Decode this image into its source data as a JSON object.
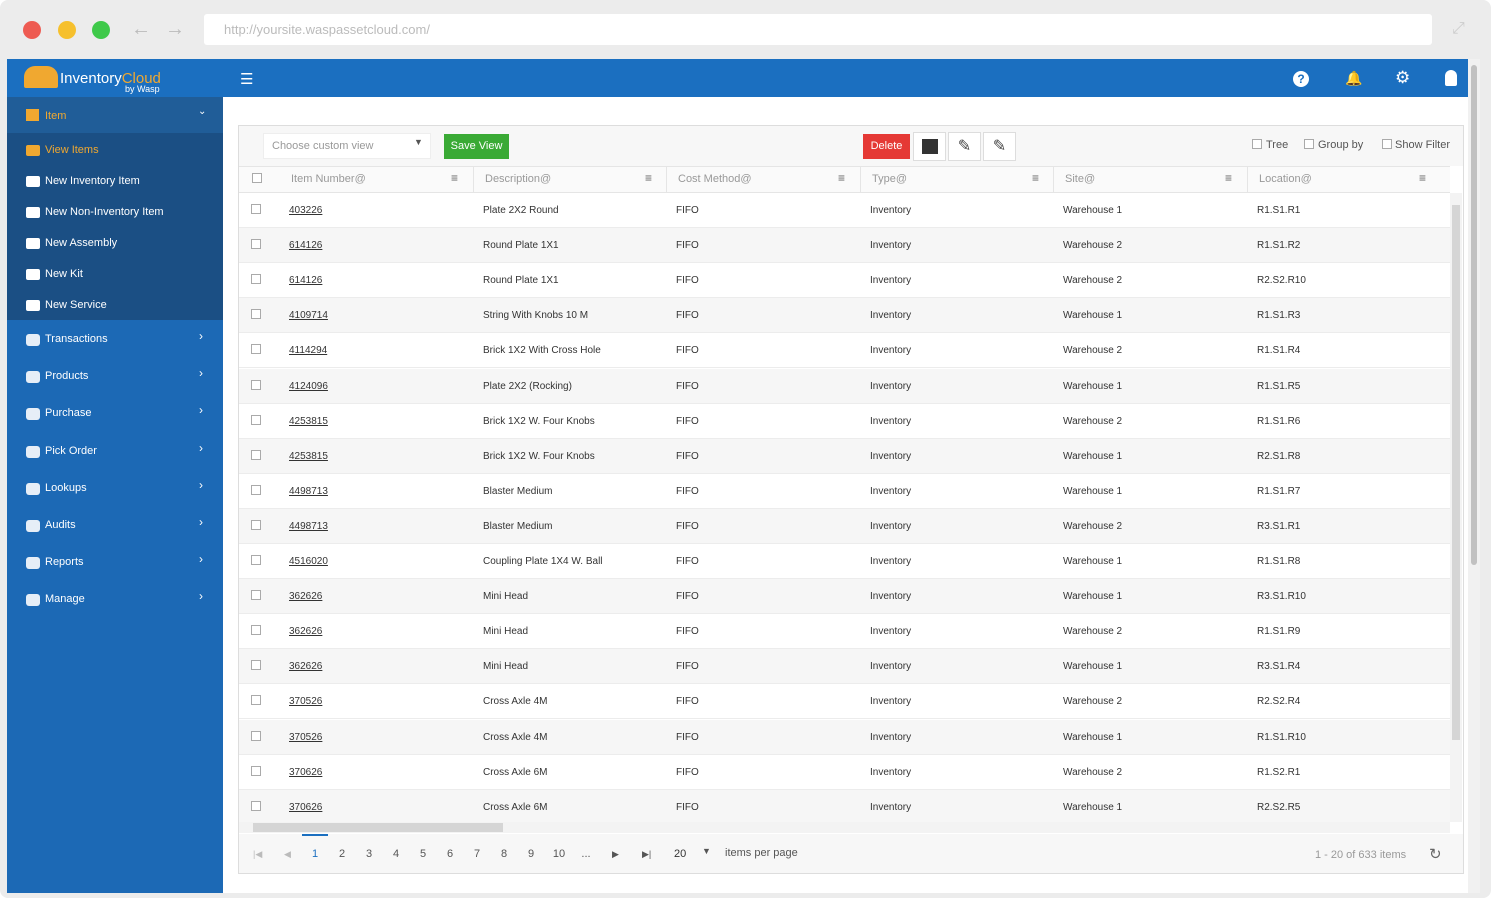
{
  "browser": {
    "url": "http://yoursite.waspassetcloud.com/"
  },
  "header": {
    "logo_main": "Inventory",
    "logo_accent": "Cloud",
    "logo_sub": "by Wasp"
  },
  "sidebar": {
    "section": "Item",
    "sub_items": [
      "View Items",
      "New Inventory Item",
      "New Non-Inventory Item",
      "New Assembly",
      "New Kit",
      "New Service"
    ],
    "menus": [
      "Transactions",
      "Products",
      "Purchase",
      "Pick Order",
      "Lookups",
      "Audits",
      "Reports",
      "Manage"
    ]
  },
  "toolbar": {
    "view_placeholder": "Choose custom view",
    "save_view": "Save View",
    "delete": "Delete",
    "tree": "Tree",
    "group_by": "Group by",
    "show_filter": "Show Filter"
  },
  "table": {
    "columns": [
      "Item Number@",
      "Description@",
      "Cost Method@",
      "Type@",
      "Site@",
      "Location@"
    ],
    "rows": [
      [
        "403226",
        "Plate 2X2 Round",
        "FIFO",
        "Inventory",
        "Warehouse 1",
        "R1.S1.R1"
      ],
      [
        "614126",
        "Round Plate 1X1",
        "FIFO",
        "Inventory",
        "Warehouse 2",
        "R1.S1.R2"
      ],
      [
        "614126",
        "Round Plate 1X1",
        "FIFO",
        "Inventory",
        "Warehouse 2",
        "R2.S2.R10"
      ],
      [
        "4109714",
        "String With Knobs 10 M",
        "FIFO",
        "Inventory",
        "Warehouse 1",
        "R1.S1.R3"
      ],
      [
        "4114294",
        "Brick 1X2 With Cross Hole",
        "FIFO",
        "Inventory",
        "Warehouse 2",
        "R1.S1.R4"
      ],
      [
        "4124096",
        "Plate 2X2 (Rocking)",
        "FIFO",
        "Inventory",
        "Warehouse 1",
        "R1.S1.R5"
      ],
      [
        "4253815",
        "Brick 1X2 W. Four Knobs",
        "FIFO",
        "Inventory",
        "Warehouse 2",
        "R1.S1.R6"
      ],
      [
        "4253815",
        "Brick 1X2 W. Four Knobs",
        "FIFO",
        "Inventory",
        "Warehouse 1",
        "R2.S1.R8"
      ],
      [
        "4498713",
        "Blaster Medium",
        "FIFO",
        "Inventory",
        "Warehouse 1",
        "R1.S1.R7"
      ],
      [
        "4498713",
        "Blaster Medium",
        "FIFO",
        "Inventory",
        "Warehouse 2",
        "R3.S1.R1"
      ],
      [
        "4516020",
        "Coupling Plate 1X4 W. Ball",
        "FIFO",
        "Inventory",
        "Warehouse 1",
        "R1.S1.R8"
      ],
      [
        "362626",
        "Mini Head",
        "FIFO",
        "Inventory",
        "Warehouse 1",
        "R3.S1.R10"
      ],
      [
        "362626",
        "Mini Head",
        "FIFO",
        "Inventory",
        "Warehouse 2",
        "R1.S1.R9"
      ],
      [
        "362626",
        "Mini Head",
        "FIFO",
        "Inventory",
        "Warehouse 1",
        "R3.S1.R4"
      ],
      [
        "370526",
        "Cross Axle 4M",
        "FIFO",
        "Inventory",
        "Warehouse 2",
        "R2.S2.R4"
      ],
      [
        "370526",
        "Cross Axle 4M",
        "FIFO",
        "Inventory",
        "Warehouse 1",
        "R1.S1.R10"
      ],
      [
        "370626",
        "Cross Axle 6M",
        "FIFO",
        "Inventory",
        "Warehouse 2",
        "R1.S2.R1"
      ],
      [
        "370626",
        "Cross Axle 6M",
        "FIFO",
        "Inventory",
        "Warehouse 1",
        "R2.S2.R5"
      ]
    ]
  },
  "pager": {
    "pages": [
      1,
      2,
      3,
      4,
      5,
      6,
      7,
      8,
      9,
      10,
      "..."
    ],
    "page_size": 20,
    "per_page_label": "items per page",
    "summary": "1 - 20 of 633 items"
  }
}
